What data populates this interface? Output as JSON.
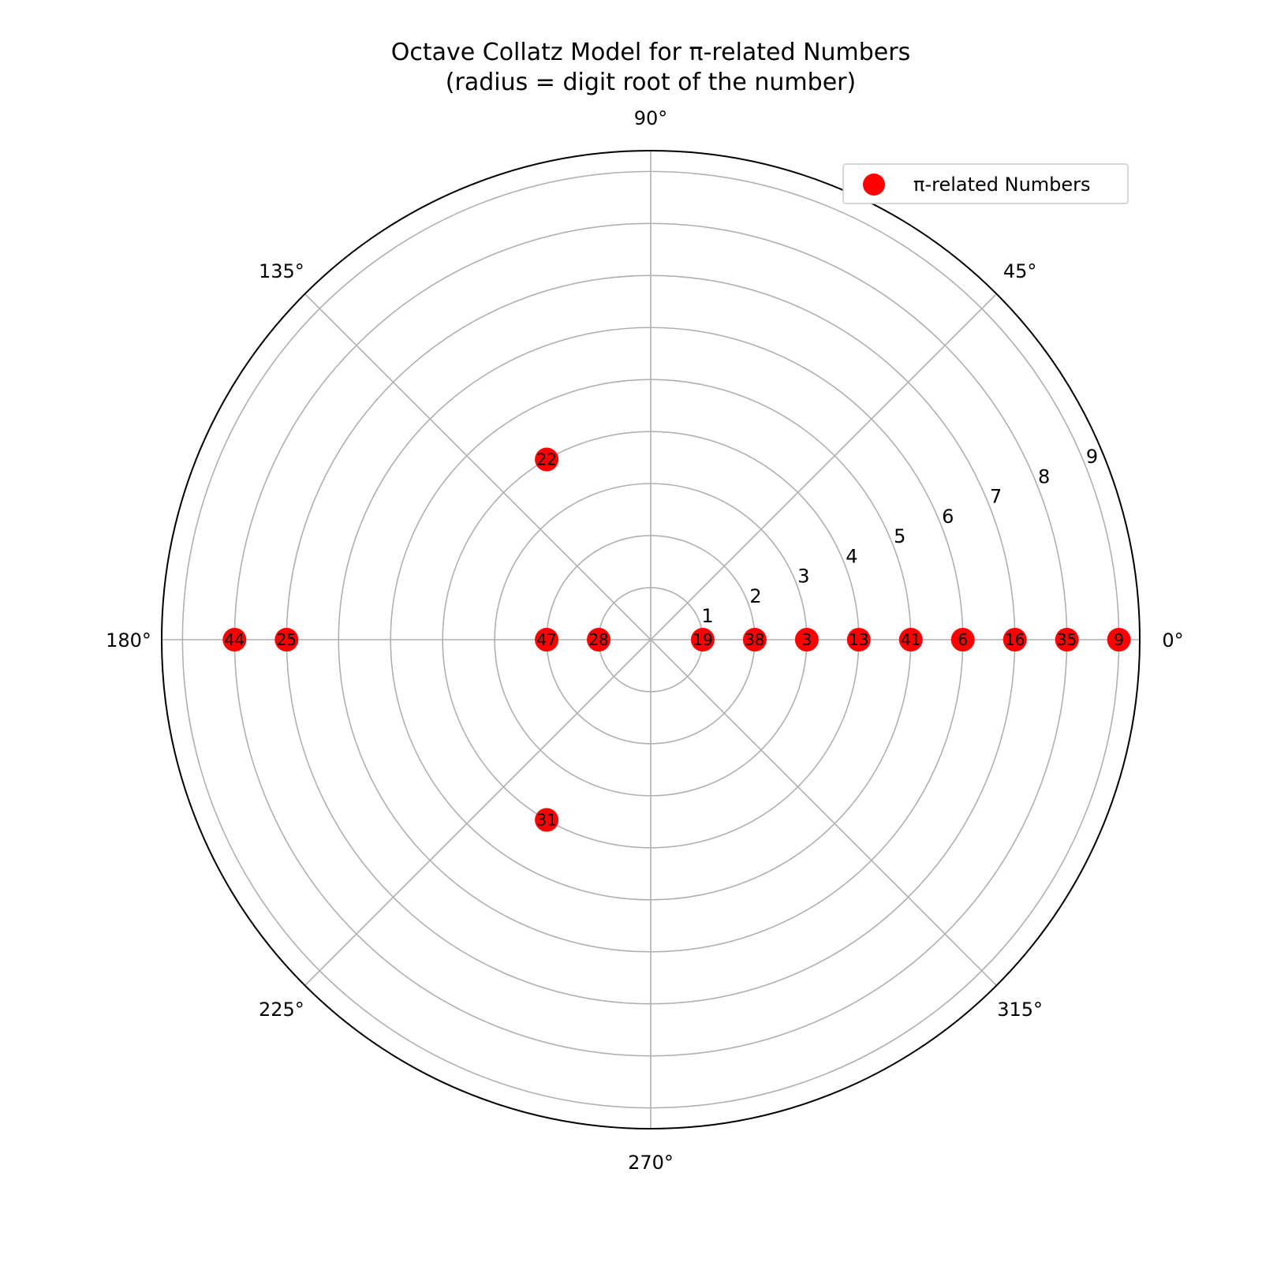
{
  "chart_data": {
    "type": "scatter",
    "projection": "polar",
    "title": [
      "Octave Collatz Model for π-related Numbers",
      "(radius = digit root of the number)"
    ],
    "theta_unit": "degrees",
    "theta_ticks": [
      "0°",
      "45°",
      "90°",
      "135°",
      "180°",
      "225°",
      "270°",
      "315°"
    ],
    "theta_tick_values": [
      0,
      45,
      90,
      135,
      180,
      225,
      270,
      315
    ],
    "r_ticks": [
      1,
      2,
      3,
      4,
      5,
      6,
      7,
      8,
      9
    ],
    "rlim": [
      0,
      9.4
    ],
    "grid": true,
    "legend": {
      "placement": "top-right",
      "entries": [
        "π-related Numbers"
      ]
    },
    "series": [
      {
        "name": "π-related Numbers",
        "color": "#ff0000",
        "points": [
          {
            "label": "9",
            "theta": 0,
            "r": 9
          },
          {
            "label": "35",
            "theta": 0,
            "r": 8
          },
          {
            "label": "16",
            "theta": 0,
            "r": 7
          },
          {
            "label": "6",
            "theta": 0,
            "r": 6
          },
          {
            "label": "41",
            "theta": 0,
            "r": 5
          },
          {
            "label": "13",
            "theta": 0,
            "r": 4
          },
          {
            "label": "3",
            "theta": 0,
            "r": 3
          },
          {
            "label": "38",
            "theta": 0,
            "r": 2
          },
          {
            "label": "19",
            "theta": 0,
            "r": 1
          },
          {
            "label": "28",
            "theta": 180,
            "r": 1
          },
          {
            "label": "47",
            "theta": 180,
            "r": 2
          },
          {
            "label": "25",
            "theta": 180,
            "r": 7
          },
          {
            "label": "44",
            "theta": 180,
            "r": 8
          },
          {
            "label": "22",
            "theta": 120,
            "r": 4
          },
          {
            "label": "31",
            "theta": 240,
            "r": 4
          }
        ]
      }
    ]
  }
}
